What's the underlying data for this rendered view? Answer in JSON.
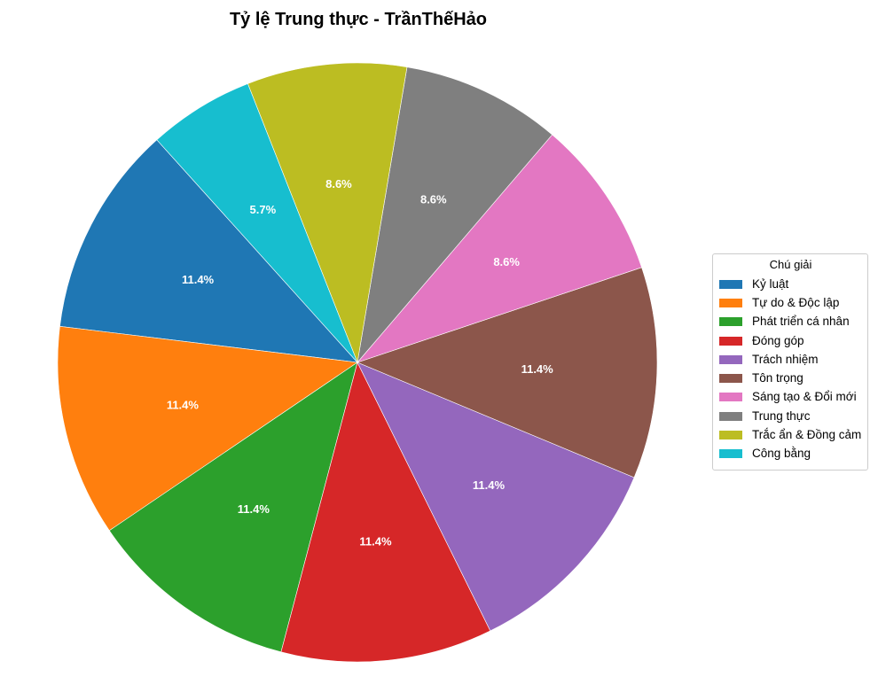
{
  "chart_data": {
    "type": "pie",
    "title": "Tỷ lệ Trung thực - TrầnThếHảo",
    "legend_title": "Chú giải",
    "legend_placement": "right",
    "start_angle_deg": 132,
    "direction": "counterclockwise",
    "categories": [
      "Kỷ luật",
      "Tự do & Độc lập",
      "Phát triển cá nhân",
      "Đóng góp",
      "Trách nhiệm",
      "Tôn trọng",
      "Sáng tạo & Đổi mới",
      "Trung thực",
      "Trắc ẩn & Đồng cảm",
      "Công bằng"
    ],
    "values": [
      11.4,
      11.4,
      11.4,
      11.4,
      11.4,
      11.4,
      8.6,
      8.6,
      8.6,
      5.7
    ],
    "labels": [
      "11.4%",
      "11.4%",
      "11.4%",
      "11.4%",
      "11.4%",
      "11.4%",
      "8.6%",
      "8.6%",
      "8.6%",
      "5.7%"
    ],
    "colors": [
      "#1f77b4",
      "#ff7f0e",
      "#2ca02c",
      "#d62728",
      "#9467bd",
      "#8c564b",
      "#e377c2",
      "#7f7f7f",
      "#bcbd22",
      "#17becf"
    ]
  }
}
